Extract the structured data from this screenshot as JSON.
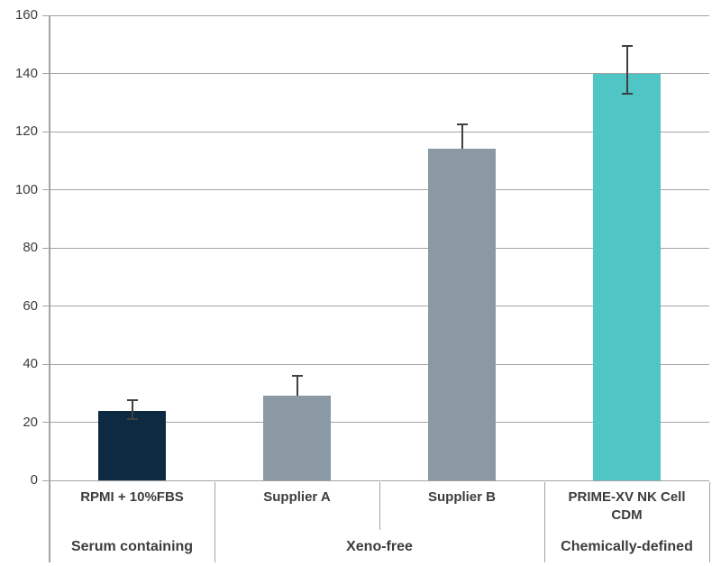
{
  "chart_data": {
    "type": "bar",
    "title": "",
    "xlabel": "",
    "ylabel": "",
    "ylim": [
      0,
      160
    ],
    "ytick_step": 20,
    "grid": true,
    "legend": false,
    "categories": [
      "RPMI + 10%FBS",
      "Supplier A",
      "Supplier B",
      "PRIME-XV NK Cell CDM"
    ],
    "values": [
      24,
      29,
      114,
      140
    ],
    "errors": [
      {
        "low": 21,
        "high": 27.5,
        "cap_low": true,
        "cap_high": true
      },
      {
        "low": 29,
        "high": 36,
        "cap_low": false,
        "cap_high": true
      },
      {
        "low": 114,
        "high": 122.5,
        "cap_low": false,
        "cap_high": true
      },
      {
        "low": 133,
        "high": 149.5,
        "cap_low": true,
        "cap_high": true
      }
    ],
    "bar_colors": [
      "#0e2a43",
      "#8b99a4",
      "#8b99a4",
      "#4fc5c5"
    ],
    "groups": [
      {
        "label": "Serum containing",
        "start": 0,
        "end": 0
      },
      {
        "label": "Xeno-free",
        "start": 1,
        "end": 2
      },
      {
        "label": "Chemically-defined",
        "start": 3,
        "end": 3
      }
    ],
    "colors": {
      "gridline": "#a3a3a3",
      "axis": "#a3a3a3",
      "divider": "#a3a3a3",
      "error_bar": "#404040",
      "text": "#3d3d3d"
    }
  }
}
